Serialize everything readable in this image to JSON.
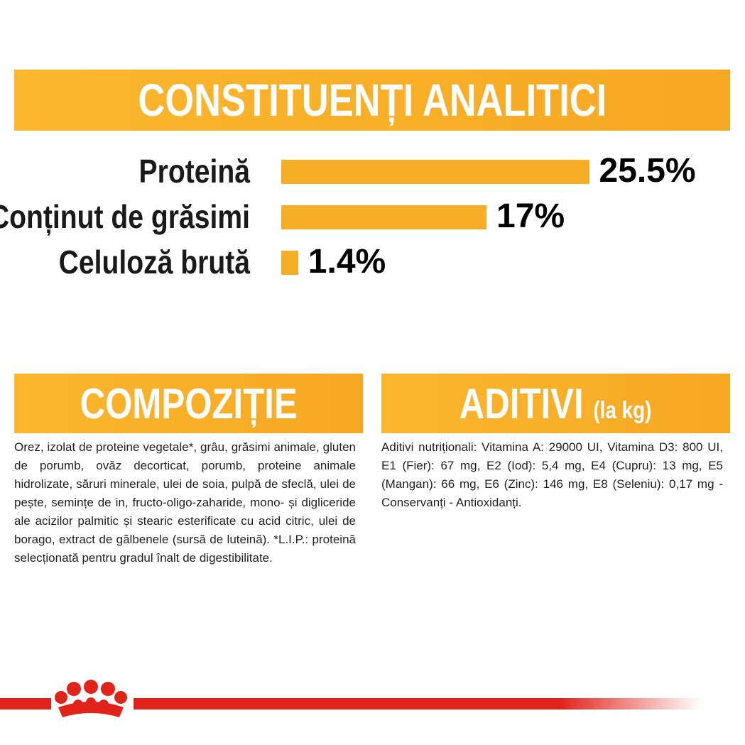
{
  "chart_data": {
    "type": "bar",
    "title": "CONSTITUENȚI ANALITICI",
    "categories": [
      "Proteină",
      "Conținut de grăsimi",
      "Celuloză brută"
    ],
    "values": [
      25.5,
      17,
      1.4
    ],
    "value_labels": [
      "25.5%",
      "17%",
      "1.4%"
    ],
    "color": "#f8ad26"
  },
  "composition": {
    "title": "COMPOZIȚIE",
    "text": "Orez, izolat de proteine vegetale*, grâu, grăsimi animale, gluten de porumb, ovăz decorticat, porumb, proteine animale hidrolizate, săruri minerale, ulei de soia, pulpă de sfeclă, ulei de pește, semințe de in, fructo-oligo-zaharide, mono- și digliceride ale acizilor palmitic și stearic esterificate cu acid citric, ulei de borago, extract de gălbenele (sursă de luteină). *L.I.P.: proteină selecționată pentru gradul înalt de digestibilitate."
  },
  "additives": {
    "title": "ADITIVI",
    "subtitle": "(la kg)",
    "text": "Aditivi nutriționali: Vitamina A: 29000 UI, Vitamina D3: 800 UI, E1 (Fier): 67 mg, E2 (Iod): 5,4 mg, E4 (Cupru): 13 mg, E5 (Mangan): 66 mg, E6 (Zinc): 146 mg, E8 (Seleniu): 0,17 mg - Conservanți - Antioxidanți."
  }
}
